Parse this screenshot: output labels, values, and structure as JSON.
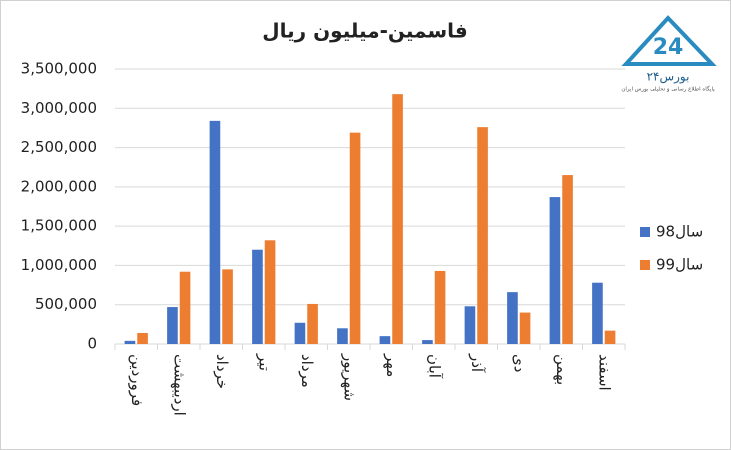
{
  "chart_data": {
    "type": "bar",
    "title": "فاسمین-میلیون ریال",
    "logo_name": "بورس۲۴",
    "logo_tagline": "پایگاه اطلاع رسانی و تحلیلی بورس ایران",
    "categories": [
      "فروردین",
      "اردیبهشت",
      "خرداد",
      "تیر",
      "مرداد",
      "شهریور",
      "مهر",
      "آبان",
      "آذر",
      "دی",
      "بهمن",
      "اسفند"
    ],
    "series": [
      {
        "name": "سال98",
        "color": "#4472c4",
        "values": [
          40000,
          470000,
          2840000,
          1200000,
          270000,
          200000,
          100000,
          50000,
          480000,
          660000,
          1870000,
          780000
        ]
      },
      {
        "name": "سال99",
        "color": "#ed7d31",
        "values": [
          140000,
          920000,
          950000,
          1320000,
          510000,
          2690000,
          3180000,
          930000,
          2760000,
          400000,
          2150000,
          170000
        ]
      }
    ],
    "ylim": [
      0,
      3500000
    ],
    "yticks": [
      0,
      {
        "value": 500000,
        "label": "500,000"
      },
      {
        "value": 1000000,
        "label": "1,000,000"
      },
      {
        "value": 1500000,
        "label": "1,500,000"
      },
      {
        "value": 2000000,
        "label": "2,000,000"
      },
      {
        "value": 2500000,
        "label": "2,500,000"
      },
      {
        "value": 3000000,
        "label": "3,000,000"
      },
      {
        "value": 3500000,
        "label": "3,500,000"
      }
    ],
    "grid": true,
    "legend": "right"
  }
}
